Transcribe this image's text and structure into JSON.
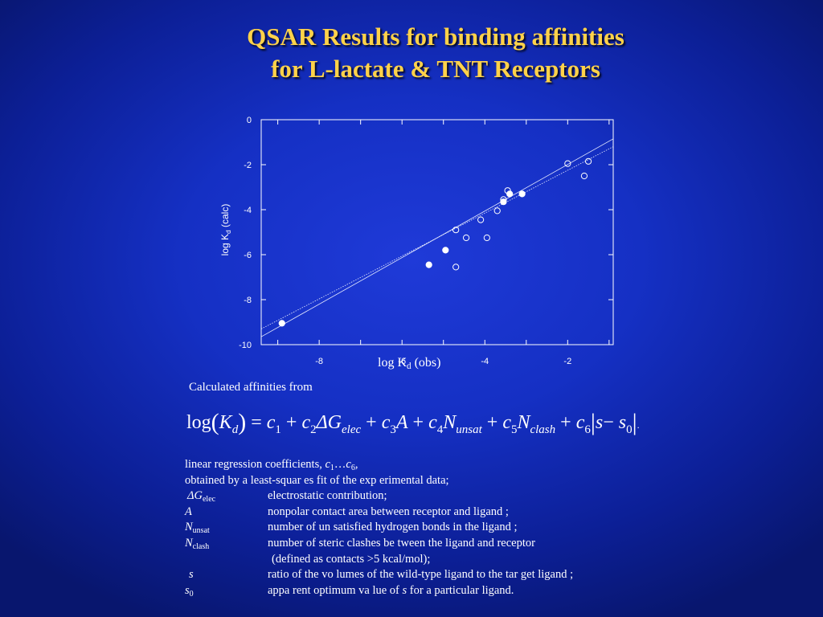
{
  "slide": {
    "title_line1": "QSAR Results for binding affinities",
    "title_line2": "for L-lactate & TNT Receptors",
    "intro": "Calculated affinities from"
  },
  "formula": {
    "log": "log",
    "lparen": "(",
    "K": "K",
    "K_sub": "d",
    "rparen": ")",
    "eq": "=",
    "c1": "c",
    "c1_sub": "1",
    "plus1": "+",
    "c2": "c",
    "c2_sub": "2",
    "dG": "ΔG",
    "dG_sub": "elec",
    "plus2": "+",
    "c3": "c",
    "c3_sub": "3",
    "A": "A",
    "plus3": "+",
    "c4": "c",
    "c4_sub": "4",
    "N1": "N",
    "N1_sub": "unsat",
    "plus4": "+",
    "c5": "c",
    "c5_sub": "5",
    "N2": "N",
    "N2_sub": "clash",
    "plus5": "+",
    "c6": "c",
    "c6_sub": "6",
    "bar1": "|",
    "s": "s",
    "minus": "−",
    "s0": "s",
    "s0_sub": "0",
    "bar2": "|",
    "dot": "."
  },
  "notes": {
    "line1_text": "linear regression coefficients, ",
    "line1_c1": "c",
    "line1_c1_sub": "1",
    "line1_ellipsis": "…",
    "line1_c6": "c",
    "line1_c6_sub": "6",
    "line1_comma": ",",
    "line2": "obtained by a  least-squar es fit of the exp erimental data;",
    "defs": [
      {
        "sym": "ΔG",
        "sub": "elec",
        "desc": "electrostatic contribution;"
      },
      {
        "sym": "A",
        "sub": "",
        "desc": "nonpolar contact area between  receptor and  ligand ;"
      },
      {
        "sym": "N",
        "sub": "unsat",
        "desc": "number of un satisfied hydrogen  bonds  in the ligand ;"
      },
      {
        "sym": "N",
        "sub": "clash",
        "desc": "number of steric clashes be tween  the ligand  and receptor"
      },
      {
        "cont": "(defined as contacts  >5 kcal/mol);"
      },
      {
        "sym": "s",
        "sub": "",
        "desc": "ratio of the vo lumes of the wild-type  ligand  to the tar get ligand ;"
      },
      {
        "sym": "s",
        "sub": "0",
        "desc_a": "appa rent optimum va lue of ",
        "desc_s": "s",
        "desc_b": " for a particular ligand."
      }
    ]
  },
  "chart_data": {
    "type": "scatter",
    "title": "",
    "xlabel_main": "log K",
    "xlabel_sub": "d",
    "xlabel_tail": " (obs)",
    "ylabel_main": "log K",
    "ylabel_sub": "d",
    "ylabel_tail": " (calc)",
    "xlim": [
      -9.4,
      -0.9
    ],
    "ylim": [
      -10,
      0
    ],
    "xticks": [
      -8,
      -6,
      -4,
      -2
    ],
    "xtick_labels": [
      "-8",
      "-6",
      "-4",
      "-2"
    ],
    "yticks": [
      0,
      -2,
      -4,
      -6,
      -8,
      -10
    ],
    "ytick_labels": [
      "0",
      "-2",
      "-4",
      "-6",
      "-8",
      "-10"
    ],
    "grid": false,
    "colors": {
      "axes": "#ffffff",
      "fit_line": "#e8ecff"
    },
    "series": [
      {
        "marker": "filled",
        "points": [
          [
            -8.9,
            -9.05
          ],
          [
            -5.35,
            -6.45
          ],
          [
            -4.95,
            -5.8
          ],
          [
            -3.55,
            -3.65
          ],
          [
            -3.4,
            -3.3
          ],
          [
            -3.1,
            -3.3
          ]
        ]
      },
      {
        "marker": "open",
        "points": [
          [
            -4.7,
            -4.9
          ],
          [
            -4.7,
            -6.55
          ],
          [
            -4.45,
            -5.25
          ],
          [
            -4.1,
            -4.45
          ],
          [
            -3.95,
            -5.25
          ],
          [
            -3.7,
            -4.05
          ],
          [
            -3.55,
            -3.55
          ],
          [
            -3.45,
            -3.15
          ],
          [
            -2.0,
            -1.95
          ],
          [
            -1.6,
            -2.5
          ],
          [
            -1.5,
            -1.85
          ]
        ]
      }
    ],
    "fit_lines": [
      {
        "from": [
          -9.4,
          -9.65
        ],
        "to": [
          -0.9,
          -0.85
        ]
      },
      {
        "from": [
          -9.4,
          -9.3
        ],
        "to": [
          -0.9,
          -1.2
        ]
      }
    ]
  }
}
